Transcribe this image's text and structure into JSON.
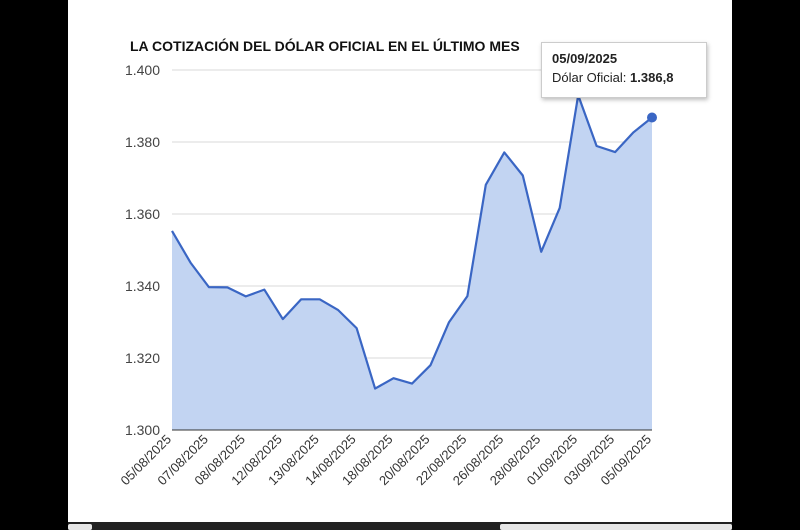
{
  "chart_data": {
    "type": "area",
    "title": "LA COTIZACIÓN DEL DÓLAR OFICIAL EN EL ÚLTIMO MES",
    "xlabel": "",
    "ylabel": "",
    "ylim": [
      1300,
      1400
    ],
    "y_ticks": [
      "1.300",
      "1.320",
      "1.340",
      "1.360",
      "1.380",
      "1.400"
    ],
    "y_tick_values": [
      1300,
      1320,
      1340,
      1360,
      1380,
      1400
    ],
    "grid": true,
    "x_tick_labels": [
      "05/08/2025",
      "07/08/2025",
      "08/08/2025",
      "12/08/2025",
      "13/08/2025",
      "14/08/2025",
      "18/08/2025",
      "20/08/2025",
      "22/08/2025",
      "26/08/2025",
      "28/08/2025",
      "01/09/2025",
      "03/09/2025",
      "05/09/2025"
    ],
    "series": [
      {
        "name": "Dólar Oficial",
        "color": "#3a66c4",
        "fill": "#c2d4f2",
        "values": [
          1355.3,
          1346.5,
          1339.7,
          1339.6,
          1337.1,
          1339.0,
          1330.8,
          1336.3,
          1336.3,
          1333.3,
          1328.3,
          1311.5,
          1314.4,
          1312.9,
          1318.0,
          1329.9,
          1337.2,
          1368.1,
          1377.1,
          1370.7,
          1349.5,
          1361.7,
          1393.0,
          1378.9,
          1377.2,
          1382.7,
          1386.8
        ]
      }
    ]
  },
  "tooltip": {
    "date": "05/09/2025",
    "label": "Dólar Oficial:",
    "value": "1.386,8"
  }
}
